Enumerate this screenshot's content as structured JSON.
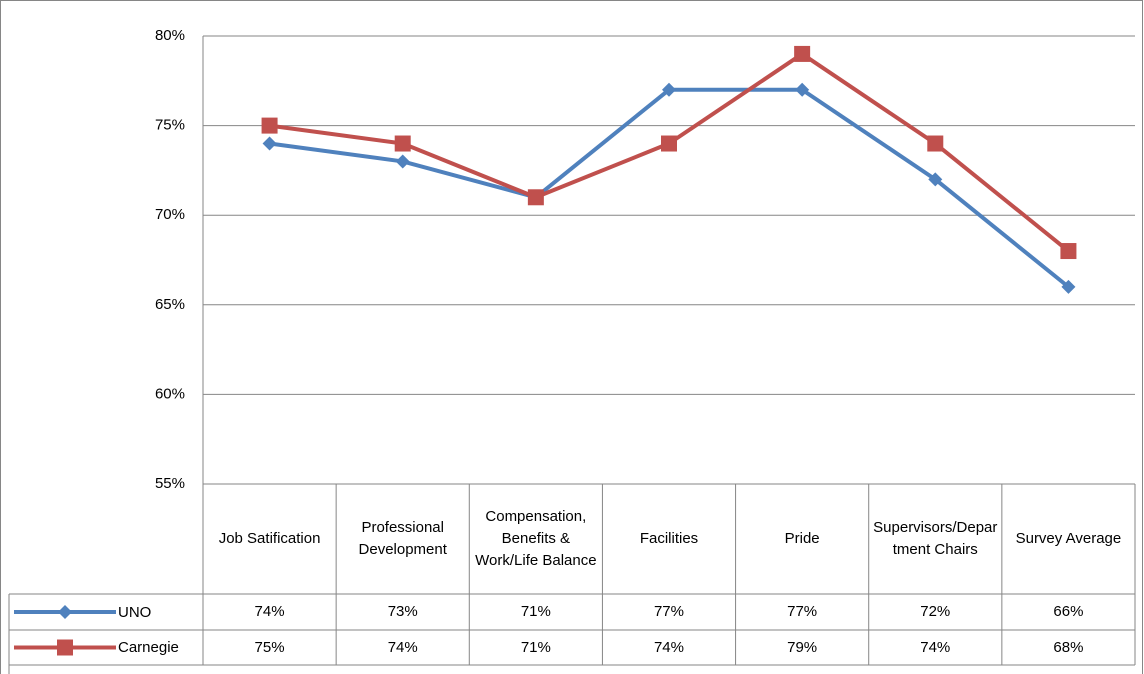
{
  "chart_data": {
    "type": "line",
    "categories": [
      "Job Satification",
      "Professional Development",
      "Compensation, Benefits & Work/Life Balance",
      "Facilities",
      "Pride",
      "Supervisors/Department Chairs",
      "Survey Average"
    ],
    "series": [
      {
        "name": "UNO",
        "color": "#4f81bd",
        "marker": "diamond",
        "values": [
          74,
          73,
          71,
          77,
          77,
          72,
          66
        ],
        "value_labels": [
          "74%",
          "73%",
          "71%",
          "77%",
          "77%",
          "72%",
          "66%"
        ]
      },
      {
        "name": "Carnegie",
        "color": "#c0504d",
        "marker": "square",
        "values": [
          75,
          74,
          71,
          74,
          79,
          74,
          68
        ],
        "value_labels": [
          "75%",
          "74%",
          "71%",
          "74%",
          "79%",
          "74%",
          "68%"
        ]
      }
    ],
    "ylim": [
      55,
      80
    ],
    "yticks": [
      {
        "value": 55,
        "label": "55%"
      },
      {
        "value": 60,
        "label": "60%"
      },
      {
        "value": 65,
        "label": "65%"
      },
      {
        "value": 70,
        "label": "70%"
      },
      {
        "value": 75,
        "label": "75%"
      },
      {
        "value": 80,
        "label": "80%"
      }
    ],
    "grid": true,
    "data_table": true
  }
}
